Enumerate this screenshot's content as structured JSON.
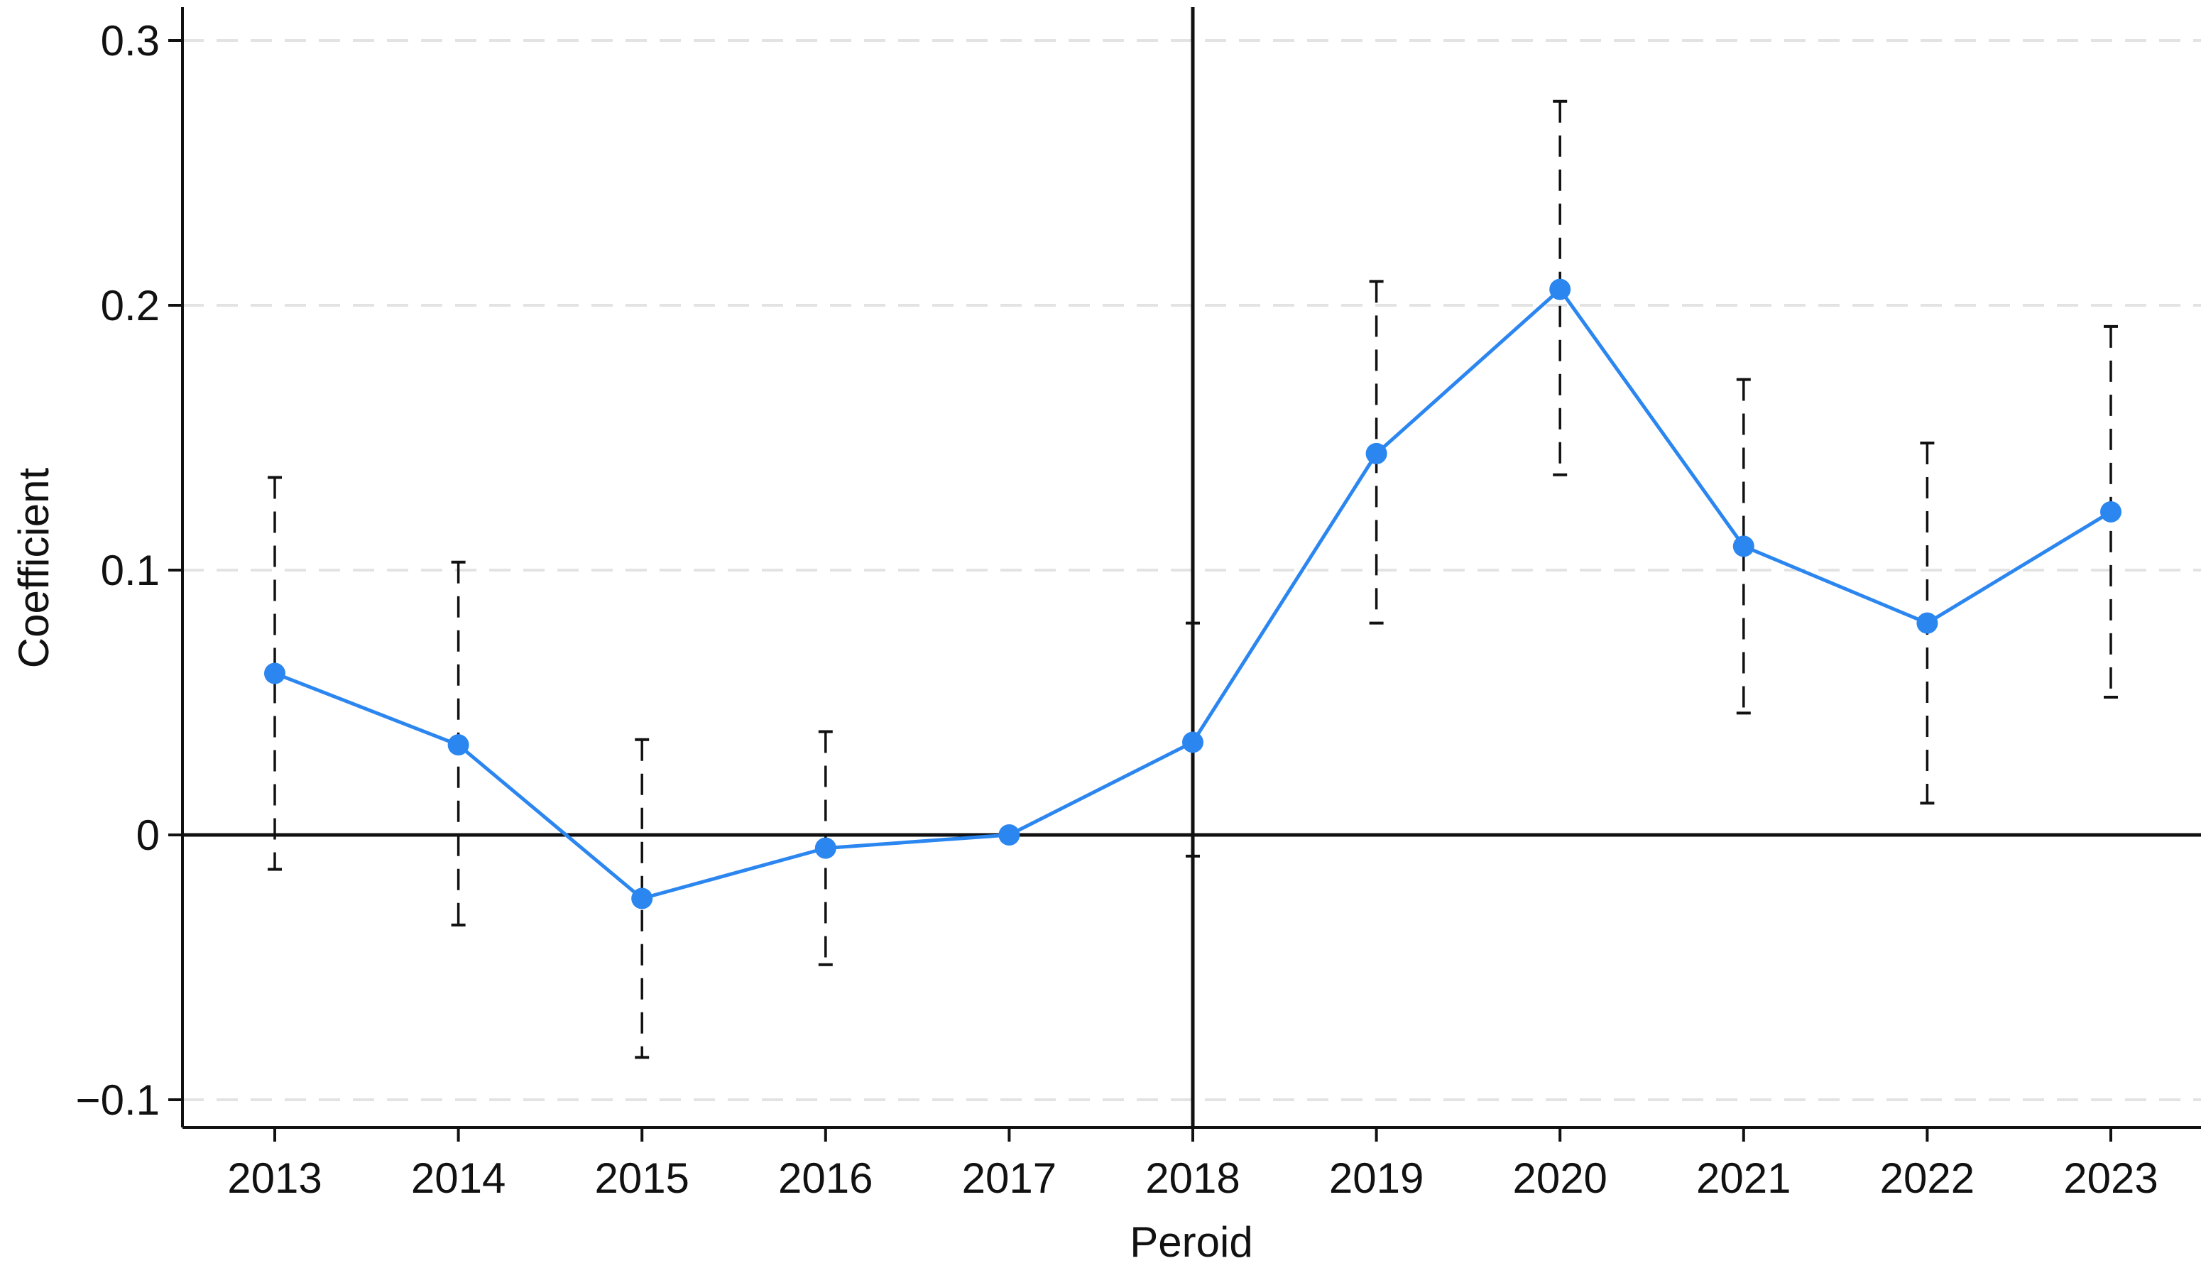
{
  "chart_data": {
    "type": "line",
    "title": "",
    "xlabel": "Peroid",
    "ylabel": "Coefficient",
    "x": [
      2013,
      2014,
      2015,
      2016,
      2017,
      2018,
      2019,
      2020,
      2021,
      2022,
      2023
    ],
    "x_tick_labels": [
      "2013",
      "2014",
      "2015",
      "2016",
      "2017",
      "2018",
      "2019",
      "2020",
      "2021",
      "2022",
      "2023"
    ],
    "y_ticks": [
      -0.1,
      0,
      0.1,
      0.2,
      0.3
    ],
    "y_tick_labels": [
      "−0.1",
      "0",
      "0.1",
      "0.2",
      "0.3"
    ],
    "ylim": [
      -0.111,
      0.31
    ],
    "xlim": [
      2012.5,
      2023.5
    ],
    "series": [
      {
        "values": [
          0.061,
          0.034,
          -0.024,
          -0.005,
          0.0,
          0.035,
          0.144,
          0.206,
          0.109,
          0.08,
          0.122
        ],
        "ci_lower": [
          -0.013,
          -0.034,
          -0.084,
          -0.049,
          0.0,
          -0.008,
          0.08,
          0.136,
          0.046,
          0.012,
          0.052
        ],
        "ci_upper": [
          0.135,
          0.103,
          0.036,
          0.039,
          0.0,
          0.08,
          0.209,
          0.277,
          0.172,
          0.148,
          0.192
        ],
        "color": "#2b86f0"
      }
    ],
    "reference_lines": {
      "horizontal": 0,
      "vertical": 2018
    },
    "grid": "horizontal dashed",
    "legend": "none"
  }
}
